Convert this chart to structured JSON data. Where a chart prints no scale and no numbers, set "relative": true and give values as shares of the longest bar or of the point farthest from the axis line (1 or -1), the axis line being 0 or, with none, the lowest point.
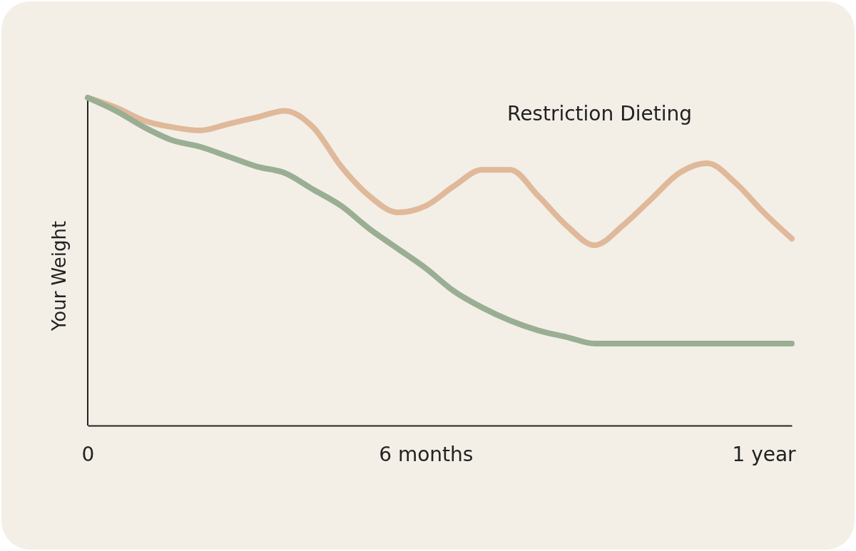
{
  "chart_data": {
    "type": "line",
    "ylabel": "Your Weight",
    "relative": true,
    "categories": [
      "0",
      null,
      null,
      null,
      null,
      null,
      null,
      null,
      null,
      null,
      null,
      null,
      "6 months",
      null,
      null,
      null,
      null,
      null,
      null,
      null,
      null,
      null,
      null,
      null,
      "1 year",
      null
    ],
    "legend": false,
    "grid": false,
    "marker": "none",
    "line_style": "solid",
    "series": [
      {
        "name": "Restriction Dieting",
        "color": "#dfb99a",
        "values": [
          1.0,
          0.97,
          0.93,
          0.91,
          0.9,
          0.92,
          0.94,
          0.96,
          0.91,
          0.79,
          0.7,
          0.65,
          0.67,
          0.73,
          0.78,
          0.78,
          0.7,
          0.61,
          0.55,
          0.61,
          0.69,
          0.77,
          0.8,
          0.74,
          0.65,
          0.57
        ]
      },
      {
        "color": "#9aae94",
        "values": [
          1.0,
          0.96,
          0.91,
          0.87,
          0.85,
          0.82,
          0.79,
          0.77,
          0.72,
          0.67,
          0.6,
          0.54,
          0.48,
          0.41,
          0.36,
          0.32,
          0.29,
          0.27,
          0.25,
          0.25,
          0.25,
          0.25,
          0.25,
          0.25,
          0.25,
          0.25
        ]
      }
    ]
  }
}
